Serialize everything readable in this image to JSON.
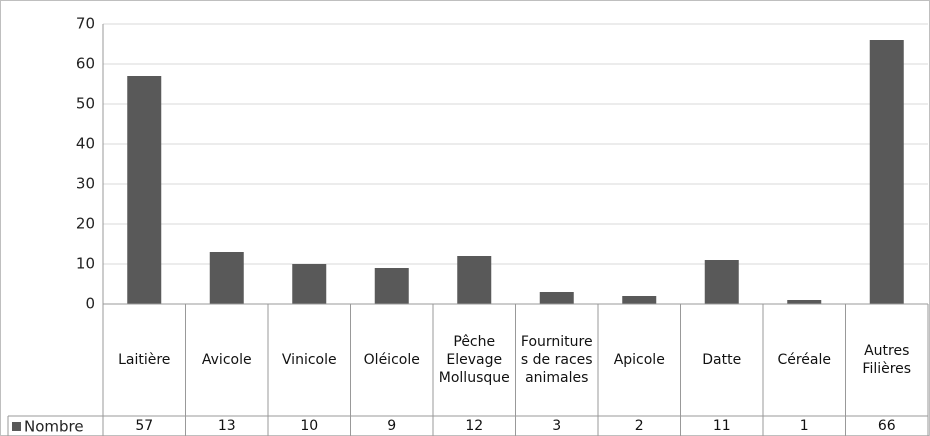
{
  "chart_data": {
    "type": "bar",
    "categories": [
      "Laitière",
      "Avicole",
      "Vinicole",
      "Oléicole",
      "Pêche Elevage Mollusque",
      "Fournitures de races animales",
      "Apicole",
      "Datte",
      "Céréale",
      "Autres Filières"
    ],
    "series": [
      {
        "name": "Nombre",
        "color": "#595959",
        "values": [
          57,
          13,
          10,
          9,
          12,
          3,
          2,
          11,
          1,
          66
        ]
      }
    ],
    "ylim": [
      0,
      70
    ],
    "yticks": [
      0,
      10,
      20,
      30,
      40,
      50,
      60,
      70
    ],
    "grid": true
  }
}
